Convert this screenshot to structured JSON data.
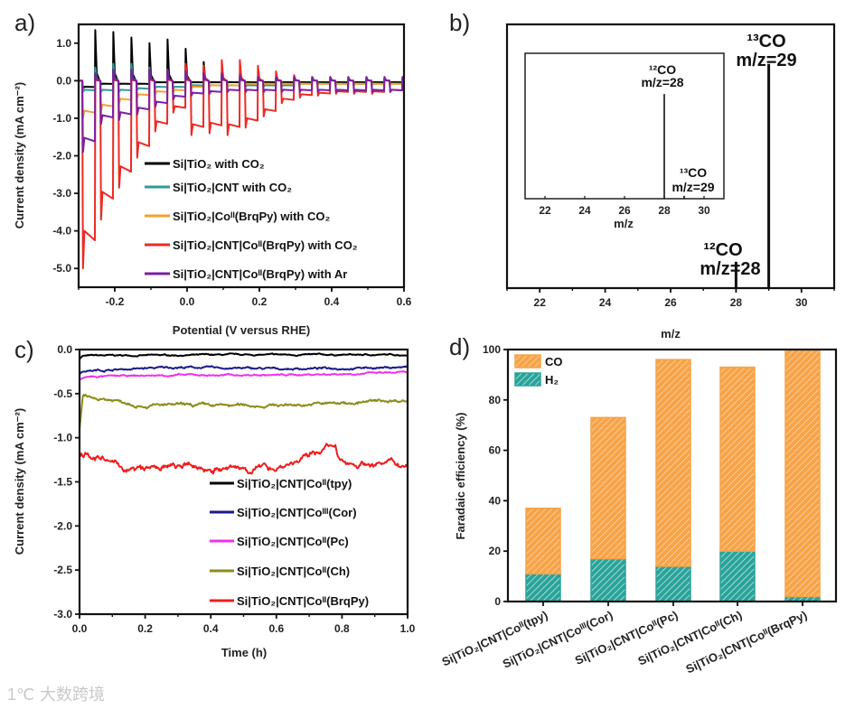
{
  "watermark": {
    "text": "大数跨境",
    "logo": "1℃"
  },
  "chart_data": [
    {
      "panel": "a)",
      "type": "line",
      "xlabel": "Potential (V versus RHE)",
      "ylabel": "Current density (mA cm⁻²)",
      "xlim": [
        -0.3,
        0.6
      ],
      "ylim": [
        -5.5,
        1.5
      ],
      "xticks": [
        -0.2,
        0.0,
        0.2,
        0.4,
        0.6
      ],
      "xtick_labels": [
        "-0.2",
        "0.0",
        "0.2",
        "0.4",
        "0.6"
      ],
      "yticks": [
        1,
        0,
        -1,
        -2,
        -3,
        -4,
        -5
      ],
      "ytick_labels": [
        "1.0",
        "0.0",
        "-1.0",
        "-2.0",
        "-3.0",
        "-4.0",
        "-5.0"
      ],
      "legend_position": "bottom-right",
      "chopping": {
        "first_on": -0.29,
        "period": 0.05,
        "on_width": 0.035
      },
      "series": [
        {
          "name": "Si|TiO₂ with CO₂",
          "color": "#000000",
          "light_on": [
            -0.2,
            -0.1,
            -0.1,
            -0.1,
            -0.05,
            -0.05,
            -0.05,
            -0.05,
            -0.05,
            -0.05,
            -0.05,
            -0.05,
            -0.05,
            -0.05,
            -0.05,
            -0.05,
            -0.05,
            -0.05
          ],
          "spike": [
            1.35,
            1.3,
            1.15,
            1.0,
            1.1,
            0.85,
            0.5,
            0.2,
            0.1,
            0.05,
            0.05,
            0.05,
            0.05,
            0.05,
            0.05,
            0.05,
            0.05,
            0.05
          ]
        },
        {
          "name": "Si|TiO₂|CNT with CO₂",
          "color": "#2a9d96",
          "light_on": [
            -0.3,
            -0.3,
            -0.3,
            -0.25,
            -0.2,
            -0.2,
            -0.15,
            -0.15,
            -0.15,
            -0.15,
            -0.15,
            -0.15,
            -0.1,
            -0.1,
            -0.1,
            -0.1,
            -0.1,
            -0.1
          ],
          "spike": [
            0.35,
            0.45,
            0.45,
            0.35,
            0.3,
            0.25,
            0.2,
            0.15,
            0.1,
            0.1,
            0.1,
            0.1,
            0.1,
            0.1,
            0.1,
            0.1,
            0.1,
            0.1
          ]
        },
        {
          "name": "Si|TiO₂|Coᴵᴵ(BrqPy) with CO₂",
          "color": "#f5a030",
          "light_on": [
            -1.0,
            -0.8,
            -0.6,
            -0.45,
            -0.35,
            -0.3,
            -0.2,
            -0.15,
            -0.15,
            -0.1,
            -0.1,
            -0.1,
            -0.1,
            -0.1,
            -0.1,
            -0.1,
            -0.1,
            -0.1
          ],
          "spike": [
            0.1,
            0.1,
            0.1,
            0.1,
            0.1,
            0.1,
            0.1,
            0.1,
            0.1,
            0.1,
            0.1,
            0.1,
            0.1,
            0.1,
            0.1,
            0.1,
            0.1,
            0.1
          ]
        },
        {
          "name": "Si|TiO₂|CNT|Coᴵᴵ(BrqPy) with CO₂",
          "color": "#ee2a22",
          "light_on": [
            -5.0,
            -3.7,
            -2.85,
            -2.05,
            -1.35,
            -0.85,
            -1.45,
            -1.4,
            -1.45,
            -1.25,
            -0.95,
            -0.6,
            -0.45,
            -0.4,
            -0.35,
            -0.35,
            -0.35,
            -0.3
          ],
          "spike": [
            0.1,
            0.1,
            0.1,
            0.15,
            0.2,
            0.45,
            0.4,
            0.55,
            0.55,
            0.4,
            0.25,
            0.15,
            0.1,
            0.1,
            0.08,
            0.08,
            0.08,
            0.08
          ]
        },
        {
          "name": "Si|TiO₂|CNT|Coᴵᴵ(BrqPy) with Ar",
          "color": "#7b1fa2",
          "light_on": [
            -1.9,
            -1.15,
            -1.05,
            -0.9,
            -0.7,
            -0.5,
            -0.4,
            -0.35,
            -0.3,
            -0.3,
            -0.3,
            -0.3,
            -0.3,
            -0.3,
            -0.3,
            -0.3,
            -0.3,
            -0.3
          ],
          "spike": [
            0.2,
            0.3,
            0.3,
            0.3,
            0.3,
            0.25,
            0.2,
            0.2,
            0.15,
            0.1,
            0.1,
            0.1,
            0.1,
            0.1,
            0.1,
            0.1,
            0.1,
            0.1
          ]
        }
      ]
    },
    {
      "panel": "b)",
      "type": "bar",
      "xlabel": "m/z",
      "xlim": [
        21,
        31
      ],
      "xticks": [
        22,
        24,
        26,
        28,
        30
      ],
      "xtick_labels": [
        "22",
        "24",
        "26",
        "28",
        "30"
      ],
      "main_peaks": [
        {
          "x": 28,
          "rel_intensity": 0.1
        },
        {
          "x": 29,
          "rel_intensity": 0.85
        }
      ],
      "main_annotations": [
        {
          "isotope": "¹³CO",
          "label": "m/z=29"
        },
        {
          "isotope": "¹²CO",
          "label": "m/z=28"
        }
      ],
      "inset": {
        "xlabel": "m/z",
        "xlim": [
          21,
          31
        ],
        "xticks": [
          22,
          24,
          26,
          28,
          30
        ],
        "xtick_labels": [
          "22",
          "24",
          "26",
          "28",
          "30"
        ],
        "peaks": [
          {
            "x": 28,
            "rel_intensity": 0.72
          },
          {
            "x": 29,
            "rel_intensity": 0.02
          }
        ],
        "annotations": [
          {
            "isotope": "¹²CO",
            "label": "m/z=28"
          },
          {
            "isotope": "¹³CO",
            "label": "m/z=29"
          }
        ]
      }
    },
    {
      "panel": "c)",
      "type": "line",
      "xlabel": "Time (h)",
      "ylabel": "Current density (mA cm⁻²)",
      "xlim": [
        0,
        1
      ],
      "ylim": [
        -3,
        0
      ],
      "xticks": [
        0,
        0.2,
        0.4,
        0.6,
        0.8,
        1.0
      ],
      "xtick_labels": [
        "0.0",
        "0.2",
        "0.4",
        "0.6",
        "0.8",
        "1.0"
      ],
      "yticks": [
        0,
        -0.5,
        -1,
        -1.5,
        -2,
        -2.5,
        -3
      ],
      "ytick_labels": [
        "0.0",
        "-0.5",
        "-1.0",
        "-1.5",
        "-2.0",
        "-2.5",
        "-3.0"
      ],
      "legend_position": "bottom-right",
      "series": [
        {
          "name": "Si|TiO₂|CNT|Coᴵᴵ(tpy)",
          "color": "#000000",
          "noise": 0.008,
          "points": [
            [
              0,
              -0.1
            ],
            [
              0.01,
              -0.07
            ],
            [
              0.5,
              -0.06
            ],
            [
              1.0,
              -0.06
            ]
          ]
        },
        {
          "name": "Si|TiO₂|CNT|Coᴵᴵᴵ(Cor)",
          "color": "#1a1a8c",
          "noise": 0.012,
          "points": [
            [
              0,
              -0.26
            ],
            [
              0.02,
              -0.24
            ],
            [
              0.3,
              -0.2
            ],
            [
              0.6,
              -0.22
            ],
            [
              1.0,
              -0.2
            ]
          ]
        },
        {
          "name": "Si|TiO₂|CNT|Coᴵᴵ(Pc)",
          "color": "#ee33ee",
          "noise": 0.01,
          "points": [
            [
              0,
              -0.34
            ],
            [
              0.02,
              -0.31
            ],
            [
              0.3,
              -0.29
            ],
            [
              0.6,
              -0.29
            ],
            [
              1.0,
              -0.26
            ]
          ]
        },
        {
          "name": "Si|TiO₂|CNT|Coᴵᴵ(Ch)",
          "color": "#8c8c1a",
          "noise": 0.02,
          "points": [
            [
              0,
              -0.9
            ],
            [
              0.01,
              -0.54
            ],
            [
              0.1,
              -0.57
            ],
            [
              0.2,
              -0.63
            ],
            [
              0.4,
              -0.64
            ],
            [
              0.6,
              -0.63
            ],
            [
              0.8,
              -0.61
            ],
            [
              1.0,
              -0.57
            ]
          ]
        },
        {
          "name": "Si|TiO₂|CNT|Coᴵᴵ(BrqPy)",
          "color": "#ee1c1c",
          "noise": 0.04,
          "points": [
            [
              0,
              -1.2
            ],
            [
              0.02,
              -1.16
            ],
            [
              0.1,
              -1.3
            ],
            [
              0.16,
              -1.37
            ],
            [
              0.3,
              -1.33
            ],
            [
              0.45,
              -1.36
            ],
            [
              0.6,
              -1.33
            ],
            [
              0.7,
              -1.22
            ],
            [
              0.75,
              -1.1
            ],
            [
              0.78,
              -1.12
            ],
            [
              0.79,
              -1.28
            ],
            [
              1.0,
              -1.3
            ]
          ]
        }
      ]
    },
    {
      "panel": "d)",
      "type": "bar",
      "stacked": true,
      "ylabel": "Faradaic efficiency (%)",
      "ylim": [
        0,
        100
      ],
      "yticks": [
        0,
        20,
        40,
        60,
        80,
        100
      ],
      "ytick_labels": [
        "0",
        "20",
        "40",
        "60",
        "80",
        "100"
      ],
      "legend_position": "top-left",
      "categories": [
        "Si|TiO₂|CNT|Coᴵᴵ(tpy)",
        "Si|TiO₂|CNT|Coᴵᴵᴵ(Cor)",
        "Si|TiO₂|CNT|Coᴵᴵ(Pc)",
        "Si|TiO₂|CNT|Coᴵᴵ(Ch)",
        "Si|TiO₂|CNT|Coᴵᴵ(BrqPy)"
      ],
      "series": [
        {
          "name": "H₂",
          "color": "#2aa39a",
          "values": [
            11,
            17,
            14,
            20,
            2
          ]
        },
        {
          "name": "CO",
          "color": "#f7a348",
          "values": [
            26,
            56,
            82,
            73,
            98
          ]
        }
      ]
    }
  ]
}
